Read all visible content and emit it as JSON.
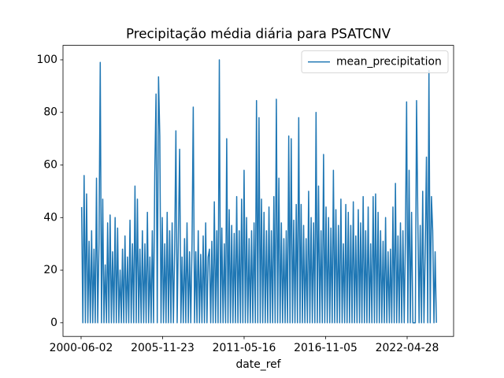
{
  "chart_data": {
    "type": "line",
    "title": "Precipitação média diária para PSATCNV",
    "x_label": "date_ref",
    "xlim": [
      "1999-03-16",
      "2025-06-11"
    ],
    "xticks": [
      "2000-06-02",
      "2005-11-23",
      "2011-05-16",
      "2016-11-05",
      "2022-04-28"
    ],
    "ylim": [
      -5.2,
      105.5
    ],
    "yticks": [
      0,
      20,
      40,
      60,
      80,
      100
    ],
    "legend": "upper right",
    "x": [
      "2000-06-15",
      "2000-07-15",
      "2000-08-15",
      "2000-09-15",
      "2000-10-15",
      "2000-11-15",
      "2000-12-15",
      "2001-01-15",
      "2001-02-15",
      "2001-03-15",
      "2001-04-15",
      "2001-05-15",
      "2001-06-15",
      "2001-07-15",
      "2001-08-15",
      "2001-09-15",
      "2001-10-15",
      "2001-11-15",
      "2001-12-15",
      "2002-01-15",
      "2002-02-15",
      "2002-03-15",
      "2002-04-15",
      "2002-05-15",
      "2002-06-15",
      "2002-07-15",
      "2002-08-15",
      "2002-09-15",
      "2002-10-15",
      "2002-11-15",
      "2002-12-15",
      "2003-01-15",
      "2003-02-15",
      "2003-03-15",
      "2003-04-15",
      "2003-05-15",
      "2003-06-15",
      "2003-07-15",
      "2003-08-15",
      "2003-09-15",
      "2003-10-15",
      "2003-11-15",
      "2003-12-15",
      "2004-01-15",
      "2004-02-15",
      "2004-03-15",
      "2004-04-15",
      "2004-05-15",
      "2004-06-15",
      "2004-07-15",
      "2004-08-15",
      "2004-09-15",
      "2004-10-15",
      "2004-11-15",
      "2004-12-15",
      "2005-01-15",
      "2005-02-15",
      "2005-03-15",
      "2005-04-15",
      "2005-05-15",
      "2005-06-15",
      "2005-07-15",
      "2005-08-15",
      "2005-09-15",
      "2005-10-15",
      "2005-11-15",
      "2005-12-15",
      "2006-01-15",
      "2006-02-15",
      "2006-03-15",
      "2006-04-15",
      "2006-05-15",
      "2006-06-15",
      "2006-07-15",
      "2006-08-15",
      "2006-09-15",
      "2006-10-15",
      "2006-11-15",
      "2006-12-15",
      "2007-01-15",
      "2007-02-15",
      "2007-03-15",
      "2007-04-15",
      "2007-05-15",
      "2007-06-15",
      "2007-07-15",
      "2007-08-15",
      "2007-09-15",
      "2007-10-15",
      "2007-11-15",
      "2007-12-15",
      "2008-01-15",
      "2008-02-15",
      "2008-03-15",
      "2008-04-15",
      "2008-05-15",
      "2008-06-15",
      "2008-07-15",
      "2008-08-15",
      "2008-09-15",
      "2008-10-15",
      "2008-11-15",
      "2008-12-15",
      "2009-01-15",
      "2009-02-15",
      "2009-03-15",
      "2009-04-15",
      "2009-05-15",
      "2009-06-15",
      "2009-07-15",
      "2009-08-15",
      "2009-09-15",
      "2009-10-15",
      "2009-11-15",
      "2009-12-15",
      "2010-01-15",
      "2010-02-15",
      "2010-03-15",
      "2010-04-15",
      "2010-05-15",
      "2010-06-15",
      "2010-07-15",
      "2010-08-15",
      "2010-09-15",
      "2010-10-15",
      "2010-11-15",
      "2010-12-15",
      "2011-01-15",
      "2011-02-15",
      "2011-03-15",
      "2011-04-15",
      "2011-05-15",
      "2011-06-15",
      "2011-07-15",
      "2011-08-15",
      "2011-09-15",
      "2011-10-15",
      "2011-11-15",
      "2011-12-15",
      "2012-01-15",
      "2012-02-15",
      "2012-03-15",
      "2012-04-15",
      "2012-05-15",
      "2012-06-15",
      "2012-07-15",
      "2012-08-15",
      "2012-09-15",
      "2012-10-15",
      "2012-11-15",
      "2012-12-15",
      "2013-01-15",
      "2013-02-15",
      "2013-03-15",
      "2013-04-15",
      "2013-05-15",
      "2013-06-15",
      "2013-07-15",
      "2013-08-15",
      "2013-09-15",
      "2013-10-15",
      "2013-11-15",
      "2013-12-15",
      "2014-01-15",
      "2014-02-15",
      "2014-03-15",
      "2014-04-15",
      "2014-05-15",
      "2014-06-15",
      "2014-07-15",
      "2014-08-15",
      "2014-09-15",
      "2014-10-15",
      "2014-11-15",
      "2014-12-15",
      "2015-01-15",
      "2015-02-15",
      "2015-03-15",
      "2015-04-15",
      "2015-05-15",
      "2015-06-15",
      "2015-07-15",
      "2015-08-15",
      "2015-09-15",
      "2015-10-15",
      "2015-11-15",
      "2015-12-15",
      "2016-01-15",
      "2016-02-15",
      "2016-03-15",
      "2016-04-15",
      "2016-05-15",
      "2016-06-15",
      "2016-07-15",
      "2016-08-15",
      "2016-09-15",
      "2016-10-15",
      "2016-11-15",
      "2016-12-15",
      "2017-01-15",
      "2017-02-15",
      "2017-03-15",
      "2017-04-15",
      "2017-05-15",
      "2017-06-15",
      "2017-07-15",
      "2017-08-15",
      "2017-09-15",
      "2017-10-15",
      "2017-11-15",
      "2017-12-15",
      "2018-01-15",
      "2018-02-15",
      "2018-03-15",
      "2018-04-15",
      "2018-05-15",
      "2018-06-15",
      "2018-07-15",
      "2018-08-15",
      "2018-09-15",
      "2018-10-15",
      "2018-11-15",
      "2018-12-15",
      "2019-01-15",
      "2019-02-15",
      "2019-03-15",
      "2019-04-15",
      "2019-05-15",
      "2019-06-15",
      "2019-07-15",
      "2019-08-15",
      "2019-09-15",
      "2019-10-15",
      "2019-11-15",
      "2019-12-15",
      "2020-01-15",
      "2020-02-15",
      "2020-03-15",
      "2020-04-15",
      "2020-05-15",
      "2020-06-15",
      "2020-07-15",
      "2020-08-15",
      "2020-09-15",
      "2020-10-15",
      "2020-11-15",
      "2020-12-15",
      "2021-01-15",
      "2021-02-15",
      "2021-03-15",
      "2021-04-15",
      "2021-05-15",
      "2021-06-15",
      "2021-07-15",
      "2021-08-15",
      "2021-09-15",
      "2021-10-15",
      "2021-11-15",
      "2021-12-15",
      "2022-01-15",
      "2022-02-15",
      "2022-03-15",
      "2022-04-15",
      "2022-05-15",
      "2022-06-15",
      "2022-07-15",
      "2022-08-15",
      "2022-09-15",
      "2022-10-15",
      "2022-11-15",
      "2022-12-15",
      "2023-01-15",
      "2023-02-15",
      "2023-03-15",
      "2023-04-15",
      "2023-05-15",
      "2023-06-15",
      "2023-07-15",
      "2023-08-15",
      "2023-09-15",
      "2023-10-15",
      "2023-11-15",
      "2023-12-15",
      "2024-01-15",
      "2024-02-15",
      "2024-03-15",
      "2024-04-15"
    ],
    "series": [
      {
        "name": "mean_precipitation",
        "color": "#1f77b4",
        "values": [
          44,
          0,
          56,
          0,
          49,
          0,
          31,
          0,
          35,
          0,
          28,
          0,
          55,
          0,
          30,
          99,
          0,
          47,
          0,
          22,
          0,
          38,
          0,
          41,
          0,
          27,
          0,
          40,
          0,
          36,
          0,
          20,
          0,
          28,
          0,
          33,
          0,
          25,
          0,
          39,
          0,
          30,
          0,
          52,
          0,
          47,
          0,
          28,
          0,
          35,
          0,
          30,
          0,
          42,
          0,
          25,
          0,
          35,
          0,
          57,
          87,
          0,
          93.5,
          71,
          0,
          40,
          0,
          30,
          0,
          42,
          0,
          35,
          0,
          38,
          0,
          28,
          73,
          0,
          33,
          66,
          0,
          25,
          0,
          32,
          0,
          38,
          0,
          27,
          0,
          30,
          82,
          0,
          27,
          0,
          35,
          0,
          26,
          0,
          33,
          0,
          38,
          0,
          25,
          28,
          0,
          31,
          0,
          46,
          0,
          35,
          0,
          100,
          0,
          36,
          0,
          30,
          0,
          70,
          0,
          43,
          0,
          37,
          0,
          34,
          0,
          48,
          0,
          35,
          0,
          47,
          0,
          58,
          0,
          40,
          0,
          32,
          0,
          35,
          0,
          38,
          0,
          84.5,
          0,
          78,
          0,
          47,
          0,
          42,
          0,
          35,
          0,
          44,
          0,
          35,
          0,
          48,
          0,
          85,
          0,
          55,
          0,
          38,
          0,
          32,
          0,
          35,
          0,
          71,
          0,
          70,
          0,
          39,
          0,
          45,
          0,
          78,
          0,
          45,
          0,
          37,
          0,
          32,
          0,
          50,
          0,
          40,
          0,
          38,
          0,
          80,
          0,
          52,
          0,
          35,
          0,
          64,
          0,
          44,
          0,
          40,
          0,
          36,
          0,
          58,
          0,
          43,
          0,
          37,
          0,
          47,
          0,
          30,
          0,
          45,
          0,
          42,
          0,
          37,
          0,
          46,
          0,
          33,
          0,
          43,
          0,
          38,
          0,
          48,
          0,
          35,
          0,
          44,
          0,
          30,
          0,
          48,
          0,
          49,
          0,
          42,
          0,
          35,
          0,
          31,
          0,
          40,
          0,
          27,
          0,
          28,
          0,
          44,
          0,
          53,
          0,
          33,
          0,
          38,
          0,
          35,
          0,
          30,
          84,
          0,
          58,
          0,
          42,
          0,
          0,
          0,
          84.5,
          40,
          0,
          37,
          0,
          50,
          0,
          27,
          63,
          0,
          96,
          0,
          48,
          35,
          0,
          27,
          0
        ]
      }
    ]
  }
}
